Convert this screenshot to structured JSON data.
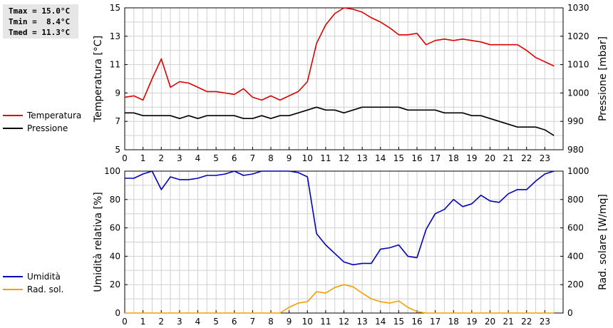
{
  "stats": {
    "tmax": "Tmax = 15.0°C",
    "tmin": "Tmin =  8.4°C",
    "tmed": "Tmed = 11.3°C"
  },
  "colors": {
    "temperature": "#dd0000",
    "pressure": "#000000",
    "humidity": "#0000bb",
    "radiation": "#f0a000",
    "grid": "#d0d0d0"
  },
  "chart_data": [
    {
      "type": "line",
      "xlabel": "",
      "x_ticks": [
        "0",
        "1",
        "2",
        "3",
        "4",
        "5",
        "6",
        "7",
        "8",
        "9",
        "10",
        "11",
        "12",
        "13",
        "14",
        "15",
        "16",
        "17",
        "18",
        "19",
        "20",
        "21",
        "22",
        "23"
      ],
      "xlim": [
        0,
        24
      ],
      "ylabel_left": "Temperatura [°C]",
      "ylim_left": [
        5,
        15
      ],
      "yticks_left": [
        "5",
        "7",
        "9",
        "11",
        "13",
        "15"
      ],
      "ylabel_right": "Pressione [mbar]",
      "ylim_right": [
        980,
        1030
      ],
      "yticks_right": [
        "980",
        "990",
        "1000",
        "1010",
        "1020",
        "1030"
      ],
      "grid": true,
      "legend": "left",
      "series": [
        {
          "name": "Temperatura",
          "axis": "left",
          "x": [
            0,
            0.5,
            1,
            1.5,
            2,
            2.5,
            3,
            3.5,
            4,
            4.5,
            5,
            5.5,
            6,
            6.5,
            7,
            7.5,
            8,
            8.5,
            9,
            9.5,
            10,
            10.5,
            11,
            11.5,
            12,
            12.5,
            13,
            13.5,
            14,
            14.5,
            15,
            15.5,
            16,
            16.5,
            17,
            17.5,
            18,
            18.5,
            19,
            19.5,
            20,
            20.5,
            21,
            21.5,
            22,
            22.5,
            23,
            23.5
          ],
          "values": [
            8.7,
            8.8,
            8.5,
            10.0,
            11.4,
            9.4,
            9.8,
            9.7,
            9.4,
            9.1,
            9.1,
            9.0,
            8.9,
            9.3,
            8.7,
            8.5,
            8.8,
            8.5,
            8.8,
            9.1,
            9.8,
            12.5,
            13.8,
            14.6,
            15.0,
            14.9,
            14.7,
            14.3,
            14.0,
            13.6,
            13.1,
            13.1,
            13.2,
            12.4,
            12.7,
            12.8,
            12.7,
            12.8,
            12.7,
            12.6,
            12.4,
            12.4,
            12.4,
            12.4,
            12.0,
            11.5,
            11.2,
            10.9
          ]
        },
        {
          "name": "Pressione",
          "axis": "right",
          "x": [
            0,
            0.5,
            1,
            1.5,
            2,
            2.5,
            3,
            3.5,
            4,
            4.5,
            5,
            5.5,
            6,
            6.5,
            7,
            7.5,
            8,
            8.5,
            9,
            9.5,
            10,
            10.5,
            11,
            11.5,
            12,
            12.5,
            13,
            13.5,
            14,
            14.5,
            15,
            15.5,
            16,
            16.5,
            17,
            17.5,
            18,
            18.5,
            19,
            19.5,
            20,
            20.5,
            21,
            21.5,
            22,
            22.5,
            23,
            23.5
          ],
          "values": [
            993,
            993,
            992,
            992,
            992,
            992,
            991,
            992,
            991,
            992,
            992,
            992,
            992,
            991,
            991,
            992,
            991,
            992,
            992,
            993,
            994,
            995,
            994,
            994,
            993,
            994,
            995,
            995,
            995,
            995,
            995,
            994,
            994,
            994,
            994,
            993,
            993,
            993,
            992,
            992,
            991,
            990,
            989,
            988,
            988,
            988,
            987,
            985
          ]
        }
      ]
    },
    {
      "type": "line",
      "xlabel": "",
      "x_ticks": [
        "0",
        "1",
        "2",
        "3",
        "4",
        "5",
        "6",
        "7",
        "8",
        "9",
        "10",
        "11",
        "12",
        "13",
        "14",
        "15",
        "16",
        "17",
        "18",
        "19",
        "20",
        "21",
        "22",
        "23"
      ],
      "xlim": [
        0,
        24
      ],
      "ylabel_left": "Umidità relativa [%]",
      "ylim_left": [
        0,
        100
      ],
      "yticks_left": [
        "0",
        "20",
        "40",
        "60",
        "80",
        "100"
      ],
      "ylabel_right": "Rad. solare [W/mq]",
      "ylim_right": [
        0,
        1000
      ],
      "yticks_right": [
        "0",
        "200",
        "400",
        "600",
        "800",
        "1000"
      ],
      "grid": true,
      "legend": "left",
      "series": [
        {
          "name": "Umidità",
          "axis": "left",
          "x": [
            0,
            0.5,
            1,
            1.5,
            2,
            2.5,
            3,
            3.5,
            4,
            4.5,
            5,
            5.5,
            6,
            6.5,
            7,
            7.5,
            8,
            8.5,
            9,
            9.5,
            10,
            10.5,
            11,
            11.5,
            12,
            12.5,
            13,
            13.5,
            14,
            14.5,
            15,
            15.5,
            16,
            16.5,
            17,
            17.5,
            18,
            18.5,
            19,
            19.5,
            20,
            20.5,
            21,
            21.5,
            22,
            22.5,
            23,
            23.5
          ],
          "values": [
            95,
            95,
            98,
            100,
            87,
            96,
            94,
            94,
            95,
            97,
            97,
            98,
            100,
            97,
            98,
            100,
            100,
            100,
            100,
            99,
            96,
            56,
            48,
            42,
            36,
            34,
            35,
            35,
            45,
            46,
            48,
            40,
            39,
            59,
            70,
            73,
            80,
            75,
            77,
            83,
            79,
            78,
            84,
            87,
            87,
            93,
            98,
            100
          ]
        },
        {
          "name": "Rad. sol.",
          "axis": "right",
          "x": [
            0,
            0.5,
            1,
            1.5,
            2,
            2.5,
            3,
            3.5,
            4,
            4.5,
            5,
            5.5,
            6,
            6.5,
            7,
            7.5,
            8,
            8.5,
            9,
            9.5,
            10,
            10.5,
            11,
            11.5,
            12,
            12.5,
            13,
            13.5,
            14,
            14.5,
            15,
            15.5,
            16,
            16.5,
            17,
            17.5,
            18,
            18.5,
            19,
            19.5,
            20,
            20.5,
            21,
            21.5,
            22,
            22.5,
            23,
            23.5
          ],
          "values": [
            0,
            0,
            0,
            0,
            0,
            0,
            0,
            0,
            0,
            0,
            0,
            0,
            0,
            0,
            0,
            0,
            0,
            0,
            40,
            70,
            80,
            150,
            140,
            180,
            200,
            185,
            140,
            100,
            80,
            70,
            85,
            40,
            10,
            0,
            0,
            0,
            0,
            0,
            0,
            0,
            0,
            0,
            0,
            0,
            0,
            0,
            0,
            0
          ]
        }
      ]
    }
  ]
}
